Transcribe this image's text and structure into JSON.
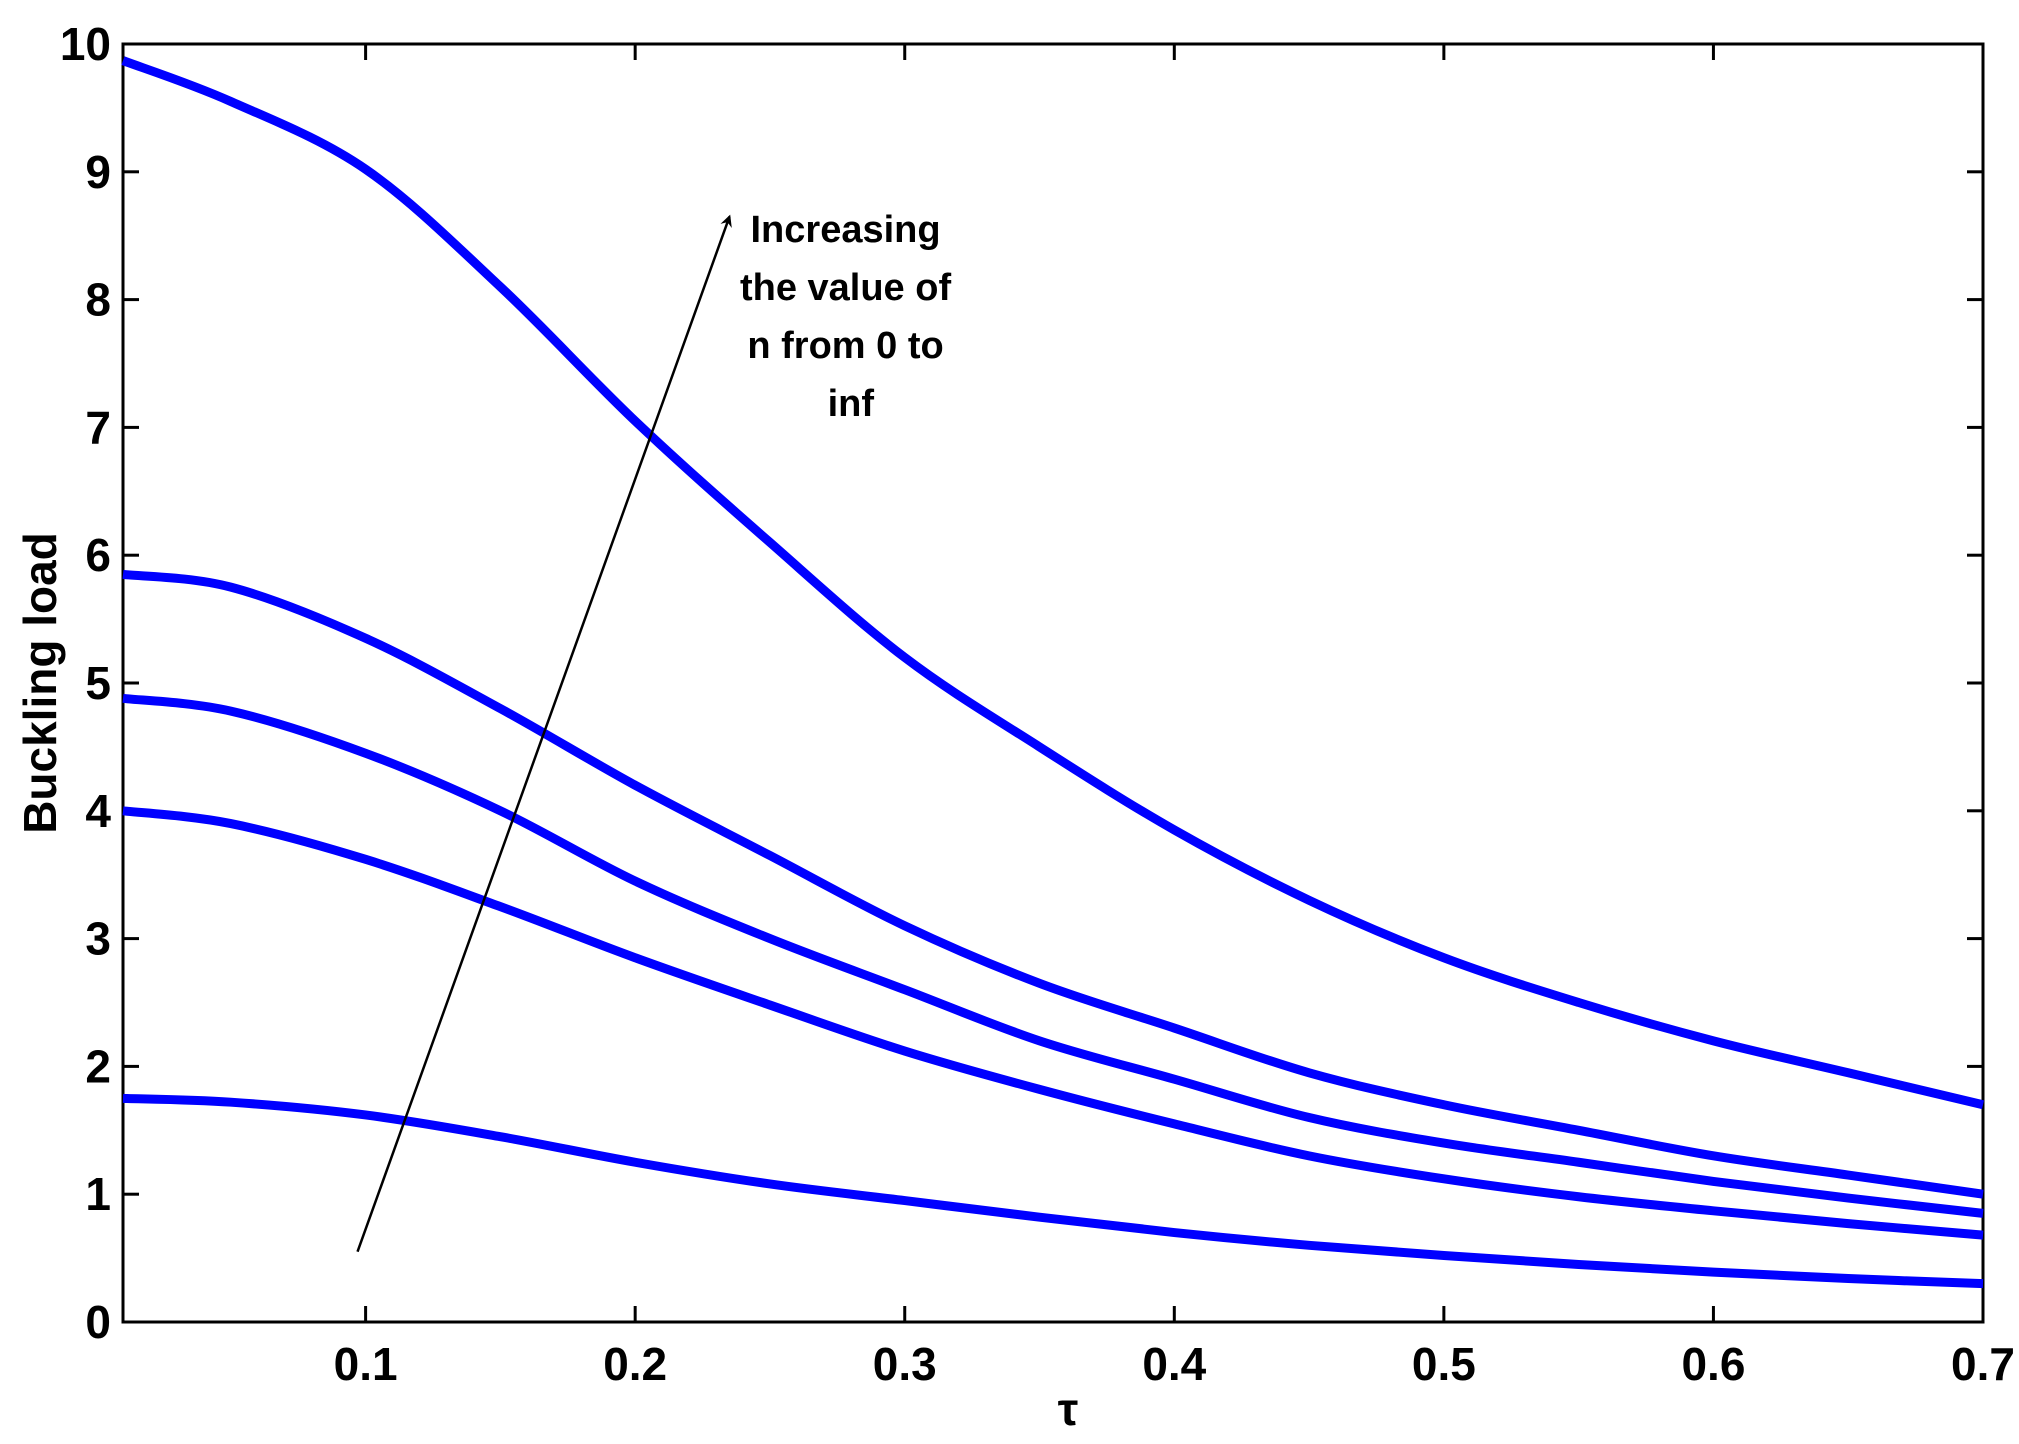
{
  "chart_data": {
    "type": "line",
    "title": "",
    "xlabel": "τ",
    "ylabel": "Buckling load",
    "xlim": [
      0.01,
      0.7
    ],
    "ylim": [
      0,
      10
    ],
    "xticks": [
      0.1,
      0.2,
      0.3,
      0.4,
      0.5,
      0.6,
      0.7
    ],
    "xtick_labels": [
      "0.1",
      "0.2",
      "0.3",
      "0.4",
      "0.5",
      "0.6",
      "0.7"
    ],
    "yticks": [
      0,
      1,
      2,
      3,
      4,
      5,
      6,
      7,
      8,
      9,
      10
    ],
    "ytick_labels": [
      "0",
      "1",
      "2",
      "3",
      "4",
      "5",
      "6",
      "7",
      "8",
      "9",
      "10"
    ],
    "grid": false,
    "line_color": "#0000ff",
    "x": [
      0.01,
      0.05,
      0.1,
      0.15,
      0.2,
      0.25,
      0.3,
      0.35,
      0.4,
      0.45,
      0.5,
      0.55,
      0.6,
      0.65,
      0.7
    ],
    "series": [
      {
        "values": [
          9.87,
          9.55,
          9.02,
          8.1,
          7.05,
          6.1,
          5.2,
          4.5,
          3.85,
          3.3,
          2.85,
          2.5,
          2.2,
          1.95,
          1.7
        ]
      },
      {
        "values": [
          5.85,
          5.75,
          5.35,
          4.8,
          4.2,
          3.65,
          3.1,
          2.65,
          2.3,
          1.95,
          1.7,
          1.5,
          1.3,
          1.15,
          1.0
        ]
      },
      {
        "values": [
          4.88,
          4.78,
          4.45,
          4.0,
          3.45,
          3.0,
          2.6,
          2.2,
          1.9,
          1.6,
          1.4,
          1.25,
          1.1,
          0.97,
          0.85
        ]
      },
      {
        "values": [
          4.0,
          3.9,
          3.62,
          3.25,
          2.85,
          2.48,
          2.12,
          1.82,
          1.55,
          1.3,
          1.12,
          0.98,
          0.87,
          0.77,
          0.68
        ]
      },
      {
        "values": [
          1.75,
          1.72,
          1.62,
          1.45,
          1.25,
          1.08,
          0.95,
          0.82,
          0.7,
          0.6,
          0.52,
          0.45,
          0.39,
          0.34,
          0.3
        ]
      }
    ],
    "annotation": {
      "lines": [
        "Increasing",
        "the value of",
        "n from 0 to",
        "inf"
      ],
      "arrow_from": [
        0.097,
        0.55
      ],
      "arrow_to": [
        0.235,
        8.65
      ],
      "text_anchor": [
        0.28,
        8.45
      ]
    }
  }
}
